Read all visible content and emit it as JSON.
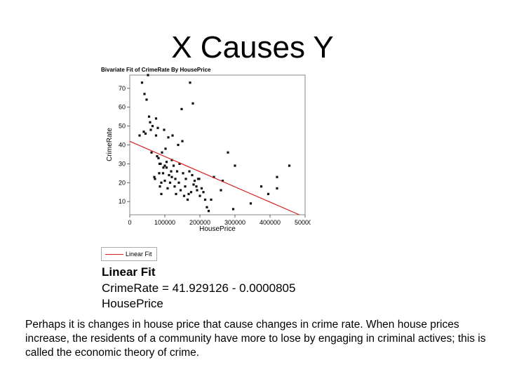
{
  "slide": {
    "title": "X Causes Y",
    "caption": "Perhaps it is changes in house price that cause changes in crime rate.  When house prices increase, the residents of a community have more to lose by engaging in criminal actives; this is called the economic theory of crime."
  },
  "fit": {
    "legend_label": "Linear Fit",
    "heading": "Linear Fit",
    "equation": "CrimeRate = 41.929126 - 0.0000805 HousePrice"
  },
  "chart_data": {
    "type": "scatter",
    "title": "Bivariate Fit of CrimeRate By HousePrice",
    "xlabel": "HousePrice",
    "ylabel": "CrimeRate",
    "xlim": [
      0,
      500000
    ],
    "ylim": [
      3,
      77
    ],
    "xticks": [
      "0",
      "100000",
      "200000",
      "300000",
      "400000",
      "500000"
    ],
    "yticks": [
      "10",
      "20",
      "30",
      "40",
      "50",
      "60",
      "70"
    ],
    "grid": false,
    "colors": {
      "points": "#111111",
      "fit_line": "#d62020"
    },
    "fit_line": {
      "intercept": 41.929126,
      "slope": -8.05e-05,
      "name": "Linear Fit"
    },
    "x": [
      28000,
      35000,
      40000,
      42000,
      45000,
      48000,
      52000,
      55000,
      58000,
      60000,
      62000,
      65000,
      70000,
      72000,
      75000,
      75000,
      78000,
      80000,
      82000,
      84000,
      85000,
      86000,
      88000,
      90000,
      90000,
      92000,
      95000,
      96000,
      98000,
      100000,
      100000,
      102000,
      105000,
      105000,
      108000,
      110000,
      112000,
      115000,
      118000,
      120000,
      120000,
      122000,
      125000,
      128000,
      130000,
      132000,
      135000,
      138000,
      140000,
      142000,
      145000,
      148000,
      150000,
      152000,
      155000,
      158000,
      160000,
      165000,
      168000,
      170000,
      172000,
      175000,
      178000,
      180000,
      182000,
      185000,
      190000,
      192000,
      195000,
      198000,
      200000,
      205000,
      210000,
      215000,
      220000,
      225000,
      232000,
      240000,
      260000,
      265000,
      280000,
      295000,
      300000,
      345000,
      375000,
      395000,
      420000,
      420000,
      455000
    ],
    "y": [
      45,
      73,
      47,
      67,
      46,
      64,
      77,
      55,
      52,
      48,
      36,
      50,
      23,
      22,
      54,
      45,
      34,
      49,
      33,
      25,
      30,
      18,
      30,
      14,
      20,
      36,
      25,
      28,
      48,
      29,
      21,
      38,
      31,
      28,
      17,
      44,
      24,
      20,
      26,
      23,
      32,
      45,
      29,
      18,
      22,
      14,
      26,
      40,
      20,
      30,
      16,
      59,
      42,
      25,
      13,
      18,
      22,
      11,
      14,
      26,
      73,
      15,
      24,
      62,
      19,
      21,
      18,
      16,
      22,
      22,
      13,
      17,
      15,
      11,
      7,
      5,
      11,
      23,
      16,
      21,
      36,
      6,
      29,
      9,
      18,
      14,
      23,
      17,
      29
    ]
  }
}
